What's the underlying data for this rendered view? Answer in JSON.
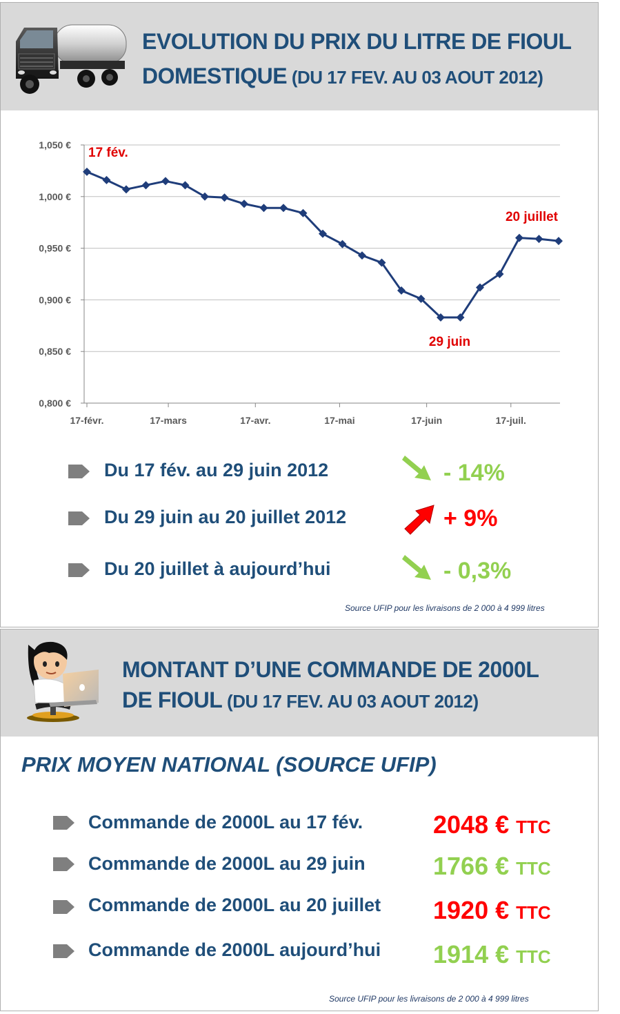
{
  "section1": {
    "title_line1": "EVOLUTION DU PRIX DU LITRE DE FIOUL",
    "title_line2_main": "DOMESTIQUE",
    "title_line2_sub": " (DU 17 FEV. AU 03 AOUT 2012)",
    "annotations": [
      "17 fév.",
      "29 juin",
      "20 juillet"
    ],
    "changes": [
      {
        "label": "Du 17 fév. au 29 juin 2012",
        "value": "- 14%",
        "direction": "down",
        "color": "#92d050"
      },
      {
        "label": "Du 29 juin au 20 juillet 2012",
        "value": "+ 9%",
        "direction": "up",
        "color": "#ff0000"
      },
      {
        "label": "Du 20 juillet à  aujourd’hui",
        "value": "- 0,3%",
        "direction": "down",
        "color": "#92d050"
      }
    ],
    "source": "Source UFIP pour les livraisons de 2 000 à 4 999 litres"
  },
  "section2": {
    "title_line1": "MONTANT D’UNE COMMANDE DE 2000L",
    "title_line2_main": "DE FIOUL",
    "title_line2_sub": " (DU 17 FEV. AU 03 AOUT 2012)",
    "subtitle": "PRIX MOYEN NATIONAL (SOURCE UFIP)",
    "orders": [
      {
        "label": "Commande de 2000L au 17 fév.",
        "amount": "2048 €",
        "unit": "TTC",
        "color": "#ff0000"
      },
      {
        "label": "Commande de 2000L au 29 juin",
        "amount": "1766 €",
        "unit": "TTC",
        "color": "#92d050"
      },
      {
        "label": "Commande de 2000L au 20 juillet",
        "amount": "1920 €",
        "unit": "TTC",
        "color": "#ff0000"
      },
      {
        "label": "Commande de 2000L aujourd’hui",
        "amount": "1914 €",
        "unit": "TTC",
        "color": "#92d050"
      }
    ],
    "source": "Source UFIP pour les livraisons de 2 000 à 4 999 litres"
  },
  "icons": {
    "truck": "fuel-tanker-truck-icon",
    "person": "person-at-laptop-icon",
    "bullet": "grey-arrow-bullet-icon"
  },
  "colors": {
    "line": "#1f3d7a",
    "title": "#1f4e79",
    "red": "#ff0000",
    "green": "#92d050",
    "header_bg": "#d9d9d9"
  },
  "chart_data": {
    "type": "line",
    "title": "",
    "xlabel": "",
    "ylabel": "",
    "ylim": [
      0.8,
      1.05
    ],
    "yticks": [
      0.8,
      0.85,
      0.9,
      0.95,
      1.0,
      1.05
    ],
    "ytick_labels": [
      "0,800 €",
      "0,850 €",
      "0,900 €",
      "0,950 €",
      "1,000 €",
      "1,050 €"
    ],
    "xtick_labels": [
      "17-févr.",
      "17-mars",
      "17-avr.",
      "17-mai",
      "17-juin",
      "17-juil."
    ],
    "xtick_dates": [
      "2012-02-17",
      "2012-03-17",
      "2012-04-17",
      "2012-05-17",
      "2012-06-17",
      "2012-07-17"
    ],
    "grid": "horizontal",
    "series": [
      {
        "x": [
          "2012-02-17",
          "2012-02-24",
          "2012-03-02",
          "2012-03-09",
          "2012-03-16",
          "2012-03-23",
          "2012-03-30",
          "2012-04-06",
          "2012-04-13",
          "2012-04-20",
          "2012-04-27",
          "2012-05-04",
          "2012-05-11",
          "2012-05-18",
          "2012-05-25",
          "2012-06-01",
          "2012-06-08",
          "2012-06-15",
          "2012-06-22",
          "2012-06-29",
          "2012-07-06",
          "2012-07-13",
          "2012-07-20",
          "2012-07-27",
          "2012-08-03"
        ],
        "values": [
          1.024,
          1.016,
          1.007,
          1.011,
          1.015,
          1.011,
          1.0,
          0.999,
          0.993,
          0.989,
          0.989,
          0.984,
          0.964,
          0.954,
          0.943,
          0.936,
          0.909,
          0.901,
          0.883,
          0.883,
          0.912,
          0.925,
          0.96,
          0.959,
          0.957
        ],
        "color": "#1f3d7a"
      }
    ]
  }
}
